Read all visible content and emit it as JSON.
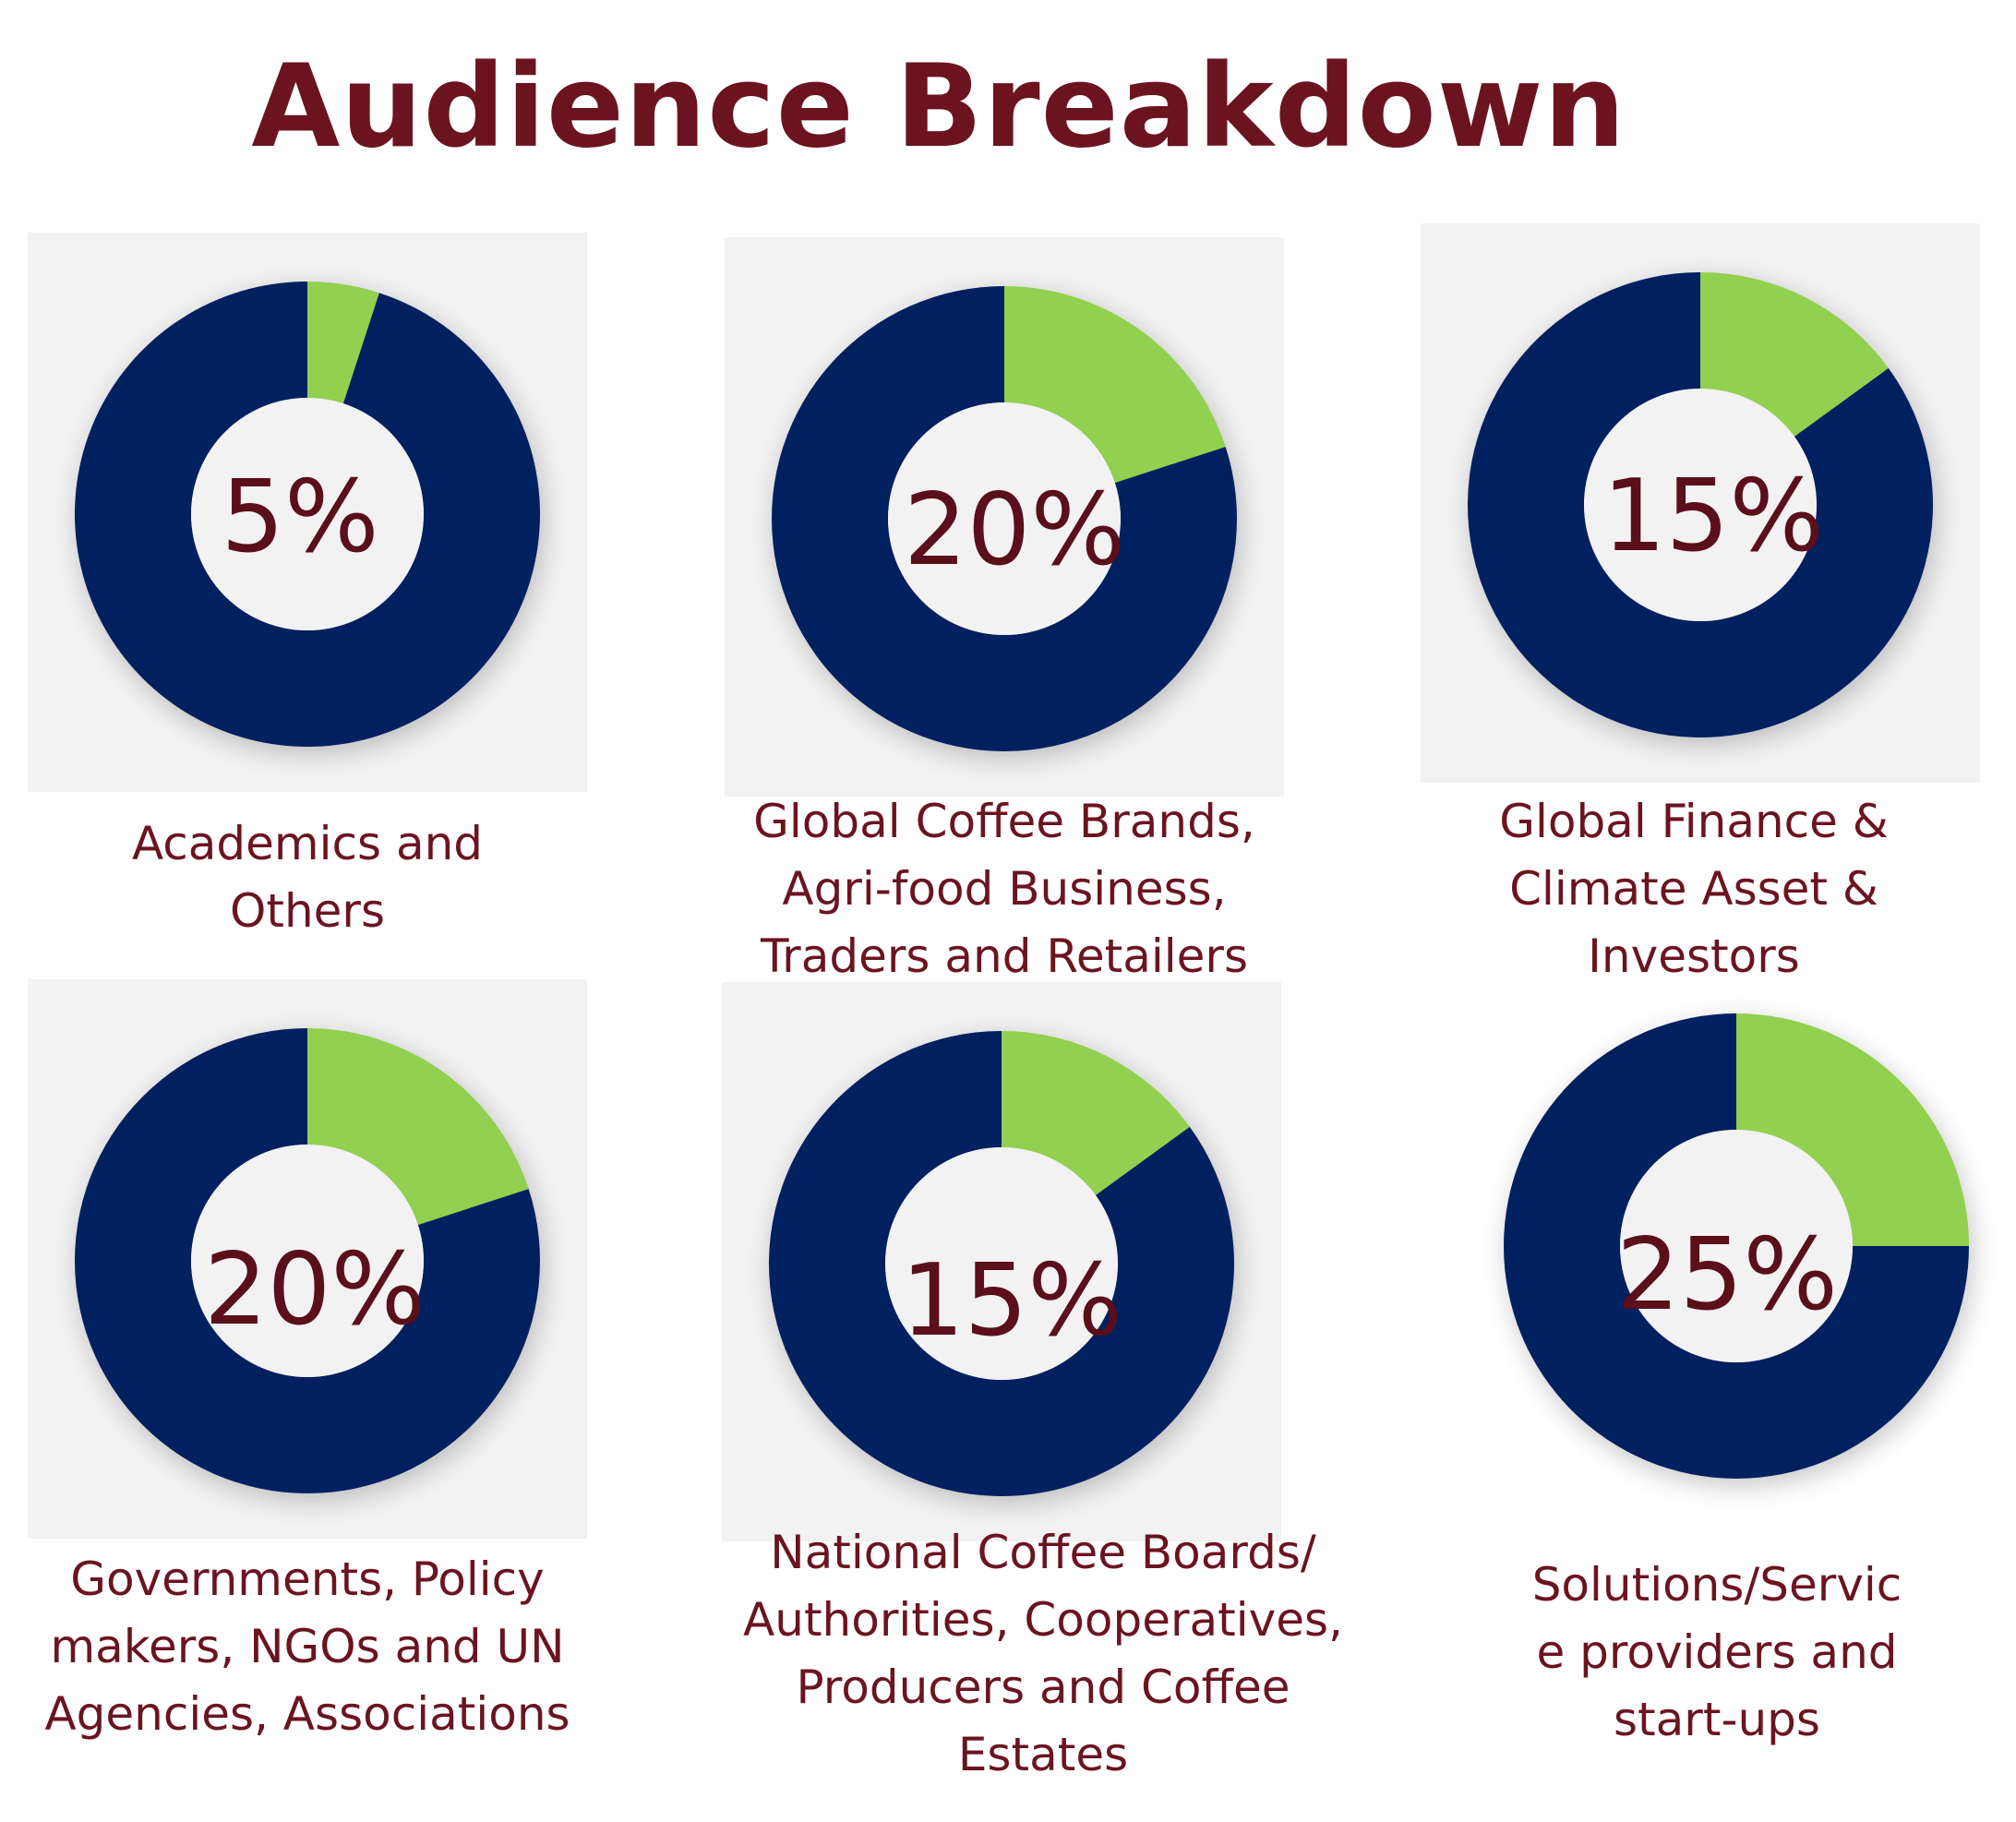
{
  "title": "Audience Breakdown",
  "colors": {
    "accent": "#92d050",
    "base": "#002060",
    "text": "#6b1420"
  },
  "chart_data": [
    {
      "type": "pie",
      "variant": "donut",
      "center_label": "5%",
      "slices": [
        {
          "value": 5,
          "color": "#92d050"
        },
        {
          "value": 95,
          "color": "#002060"
        }
      ],
      "caption_lines": [
        "Academics and",
        "Others"
      ]
    },
    {
      "type": "pie",
      "variant": "donut",
      "center_label": "20%",
      "slices": [
        {
          "value": 20,
          "color": "#92d050"
        },
        {
          "value": 80,
          "color": "#002060"
        }
      ],
      "caption_lines": [
        "Global Coffee Brands,",
        "Agri-food Business,",
        "Traders and Retailers"
      ]
    },
    {
      "type": "pie",
      "variant": "donut",
      "center_label": "15%",
      "slices": [
        {
          "value": 15,
          "color": "#92d050"
        },
        {
          "value": 85,
          "color": "#002060"
        }
      ],
      "caption_lines": [
        "Global Finance &",
        "Climate Asset &",
        "Investors"
      ]
    },
    {
      "type": "pie",
      "variant": "donut",
      "center_label": "20%",
      "slices": [
        {
          "value": 20,
          "color": "#92d050"
        },
        {
          "value": 80,
          "color": "#002060"
        }
      ],
      "caption_lines": [
        "Governments, Policy",
        "makers, NGOs and UN",
        "Agencies, Associations"
      ]
    },
    {
      "type": "pie",
      "variant": "donut",
      "center_label": "15%",
      "slices": [
        {
          "value": 15,
          "color": "#92d050"
        },
        {
          "value": 85,
          "color": "#002060"
        }
      ],
      "caption_lines": [
        "National Coffee Boards/",
        "Authorities, Cooperatives,",
        "Producers and Coffee",
        "Estates"
      ]
    },
    {
      "type": "pie",
      "variant": "donut",
      "center_label": "25%",
      "slices": [
        {
          "value": 25,
          "color": "#92d050"
        },
        {
          "value": 75,
          "color": "#002060"
        }
      ],
      "caption_lines": [
        "Solutions/Servic",
        "e providers and",
        "start-ups"
      ]
    }
  ]
}
